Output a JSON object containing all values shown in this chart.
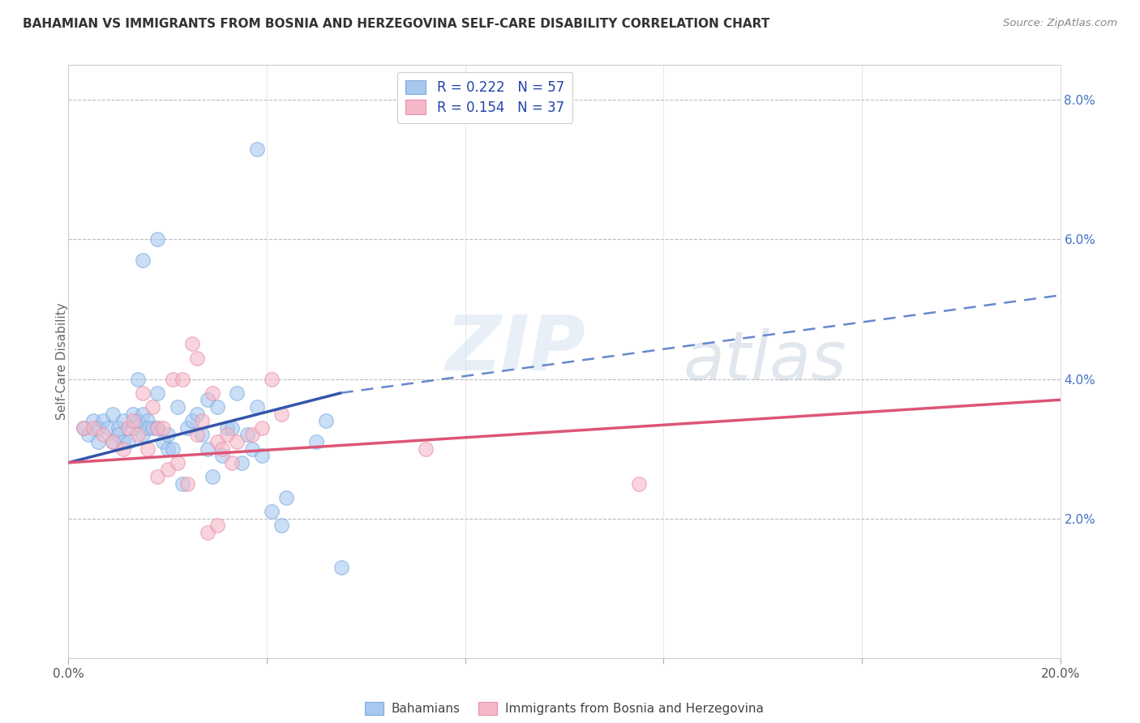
{
  "title": "BAHAMIAN VS IMMIGRANTS FROM BOSNIA AND HERZEGOVINA SELF-CARE DISABILITY CORRELATION CHART",
  "source": "Source: ZipAtlas.com",
  "ylabel": "Self-Care Disability",
  "xlim": [
    0.0,
    0.2
  ],
  "ylim": [
    0.0,
    0.085
  ],
  "xticks": [
    0.0,
    0.04,
    0.08,
    0.12,
    0.16,
    0.2
  ],
  "xticklabels": [
    "0.0%",
    "",
    "",
    "",
    "",
    "20.0%"
  ],
  "yticks_right": [
    0.0,
    0.02,
    0.04,
    0.06,
    0.08
  ],
  "yticklabels_right": [
    "",
    "2.0%",
    "4.0%",
    "6.0%",
    "8.0%"
  ],
  "watermark": "ZIPatlas",
  "blue_color": "#a8c8f0",
  "blue_edge_color": "#7aacde",
  "pink_color": "#f5b8c8",
  "pink_edge_color": "#e890a8",
  "blue_line_color": "#3355aa",
  "blue_dash_color": "#6688cc",
  "pink_line_color": "#dd5577",
  "blue_scatter": [
    [
      0.003,
      0.033
    ],
    [
      0.004,
      0.032
    ],
    [
      0.005,
      0.034
    ],
    [
      0.006,
      0.031
    ],
    [
      0.006,
      0.033
    ],
    [
      0.007,
      0.034
    ],
    [
      0.008,
      0.033
    ],
    [
      0.009,
      0.035
    ],
    [
      0.009,
      0.031
    ],
    [
      0.01,
      0.033
    ],
    [
      0.01,
      0.032
    ],
    [
      0.011,
      0.034
    ],
    [
      0.011,
      0.031
    ],
    [
      0.012,
      0.031
    ],
    [
      0.013,
      0.035
    ],
    [
      0.013,
      0.033
    ],
    [
      0.014,
      0.034
    ],
    [
      0.014,
      0.04
    ],
    [
      0.015,
      0.035
    ],
    [
      0.015,
      0.032
    ],
    [
      0.016,
      0.034
    ],
    [
      0.016,
      0.033
    ],
    [
      0.017,
      0.033
    ],
    [
      0.018,
      0.038
    ],
    [
      0.018,
      0.033
    ],
    [
      0.019,
      0.031
    ],
    [
      0.02,
      0.032
    ],
    [
      0.02,
      0.03
    ],
    [
      0.021,
      0.03
    ],
    [
      0.022,
      0.036
    ],
    [
      0.023,
      0.025
    ],
    [
      0.024,
      0.033
    ],
    [
      0.025,
      0.034
    ],
    [
      0.026,
      0.035
    ],
    [
      0.027,
      0.032
    ],
    [
      0.028,
      0.03
    ],
    [
      0.028,
      0.037
    ],
    [
      0.029,
      0.026
    ],
    [
      0.03,
      0.036
    ],
    [
      0.031,
      0.029
    ],
    [
      0.032,
      0.033
    ],
    [
      0.033,
      0.033
    ],
    [
      0.034,
      0.038
    ],
    [
      0.035,
      0.028
    ],
    [
      0.036,
      0.032
    ],
    [
      0.037,
      0.03
    ],
    [
      0.038,
      0.036
    ],
    [
      0.039,
      0.029
    ],
    [
      0.041,
      0.021
    ],
    [
      0.043,
      0.019
    ],
    [
      0.044,
      0.023
    ],
    [
      0.05,
      0.031
    ],
    [
      0.052,
      0.034
    ],
    [
      0.015,
      0.057
    ],
    [
      0.018,
      0.06
    ],
    [
      0.038,
      0.073
    ],
    [
      0.055,
      0.013
    ]
  ],
  "pink_scatter": [
    [
      0.003,
      0.033
    ],
    [
      0.005,
      0.033
    ],
    [
      0.007,
      0.032
    ],
    [
      0.009,
      0.031
    ],
    [
      0.011,
      0.03
    ],
    [
      0.012,
      0.033
    ],
    [
      0.013,
      0.034
    ],
    [
      0.014,
      0.032
    ],
    [
      0.015,
      0.038
    ],
    [
      0.016,
      0.03
    ],
    [
      0.017,
      0.036
    ],
    [
      0.018,
      0.026
    ],
    [
      0.018,
      0.033
    ],
    [
      0.019,
      0.033
    ],
    [
      0.02,
      0.027
    ],
    [
      0.021,
      0.04
    ],
    [
      0.022,
      0.028
    ],
    [
      0.023,
      0.04
    ],
    [
      0.024,
      0.025
    ],
    [
      0.025,
      0.045
    ],
    [
      0.026,
      0.032
    ],
    [
      0.026,
      0.043
    ],
    [
      0.027,
      0.034
    ],
    [
      0.028,
      0.018
    ],
    [
      0.029,
      0.038
    ],
    [
      0.03,
      0.019
    ],
    [
      0.03,
      0.031
    ],
    [
      0.031,
      0.03
    ],
    [
      0.032,
      0.032
    ],
    [
      0.033,
      0.028
    ],
    [
      0.034,
      0.031
    ],
    [
      0.037,
      0.032
    ],
    [
      0.039,
      0.033
    ],
    [
      0.041,
      0.04
    ],
    [
      0.043,
      0.035
    ],
    [
      0.072,
      0.03
    ],
    [
      0.115,
      0.025
    ]
  ],
  "blue_solid_line": [
    [
      0.0,
      0.028
    ],
    [
      0.055,
      0.038
    ]
  ],
  "blue_dashed_line": [
    [
      0.055,
      0.038
    ],
    [
      0.2,
      0.052
    ]
  ],
  "pink_solid_line": [
    [
      0.0,
      0.028
    ],
    [
      0.2,
      0.037
    ]
  ]
}
